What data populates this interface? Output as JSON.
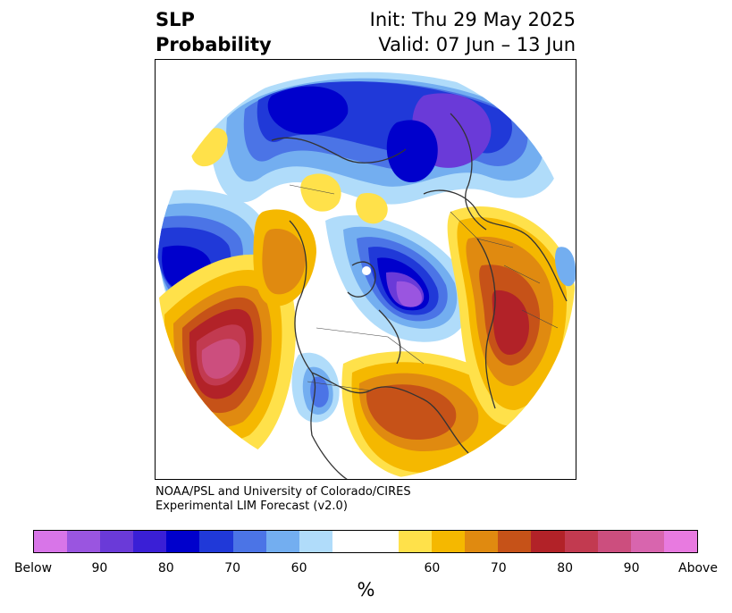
{
  "title": {
    "line1": "SLP",
    "line2": "Probability"
  },
  "init": "Init: Thu 29 May 2025",
  "valid": "Valid: 07 Jun – 13 Jun",
  "credit": {
    "line1": "NOAA/PSL and University of Colorado/CIRES",
    "line2": "Experimental LIM Forecast (v2.0)"
  },
  "colorbar": {
    "colors": [
      "#d875e8",
      "#9a55e0",
      "#6a3ad8",
      "#3a1fd6",
      "#0000cc",
      "#2039d8",
      "#4b74e6",
      "#73aef0",
      "#b0dcfa",
      "#ffffff",
      "#ffffff",
      "#ffe14a",
      "#f5b800",
      "#e08a10",
      "#c65218",
      "#b22228",
      "#c23a50",
      "#cc4e7e",
      "#d865ae",
      "#e87ae0"
    ],
    "tick_labels": [
      "Below",
      "90",
      "80",
      "70",
      "60",
      "60",
      "70",
      "80",
      "90",
      "Above"
    ],
    "unit": "%"
  },
  "map": {
    "colors": {
      "deep_blue": "#0000cc",
      "blue": "#2039d8",
      "mid_blue": "#4b74e6",
      "light_blue": "#73aef0",
      "pale_blue": "#b0dcfa",
      "violet": "#6a3ad8",
      "purple": "#9a55e0",
      "yellow": "#ffe14a",
      "gold": "#f5b800",
      "orange": "#e08a10",
      "dark_orange": "#c65218",
      "red": "#b22228",
      "crimson": "#c23a50",
      "pink": "#cc4e7e"
    }
  }
}
